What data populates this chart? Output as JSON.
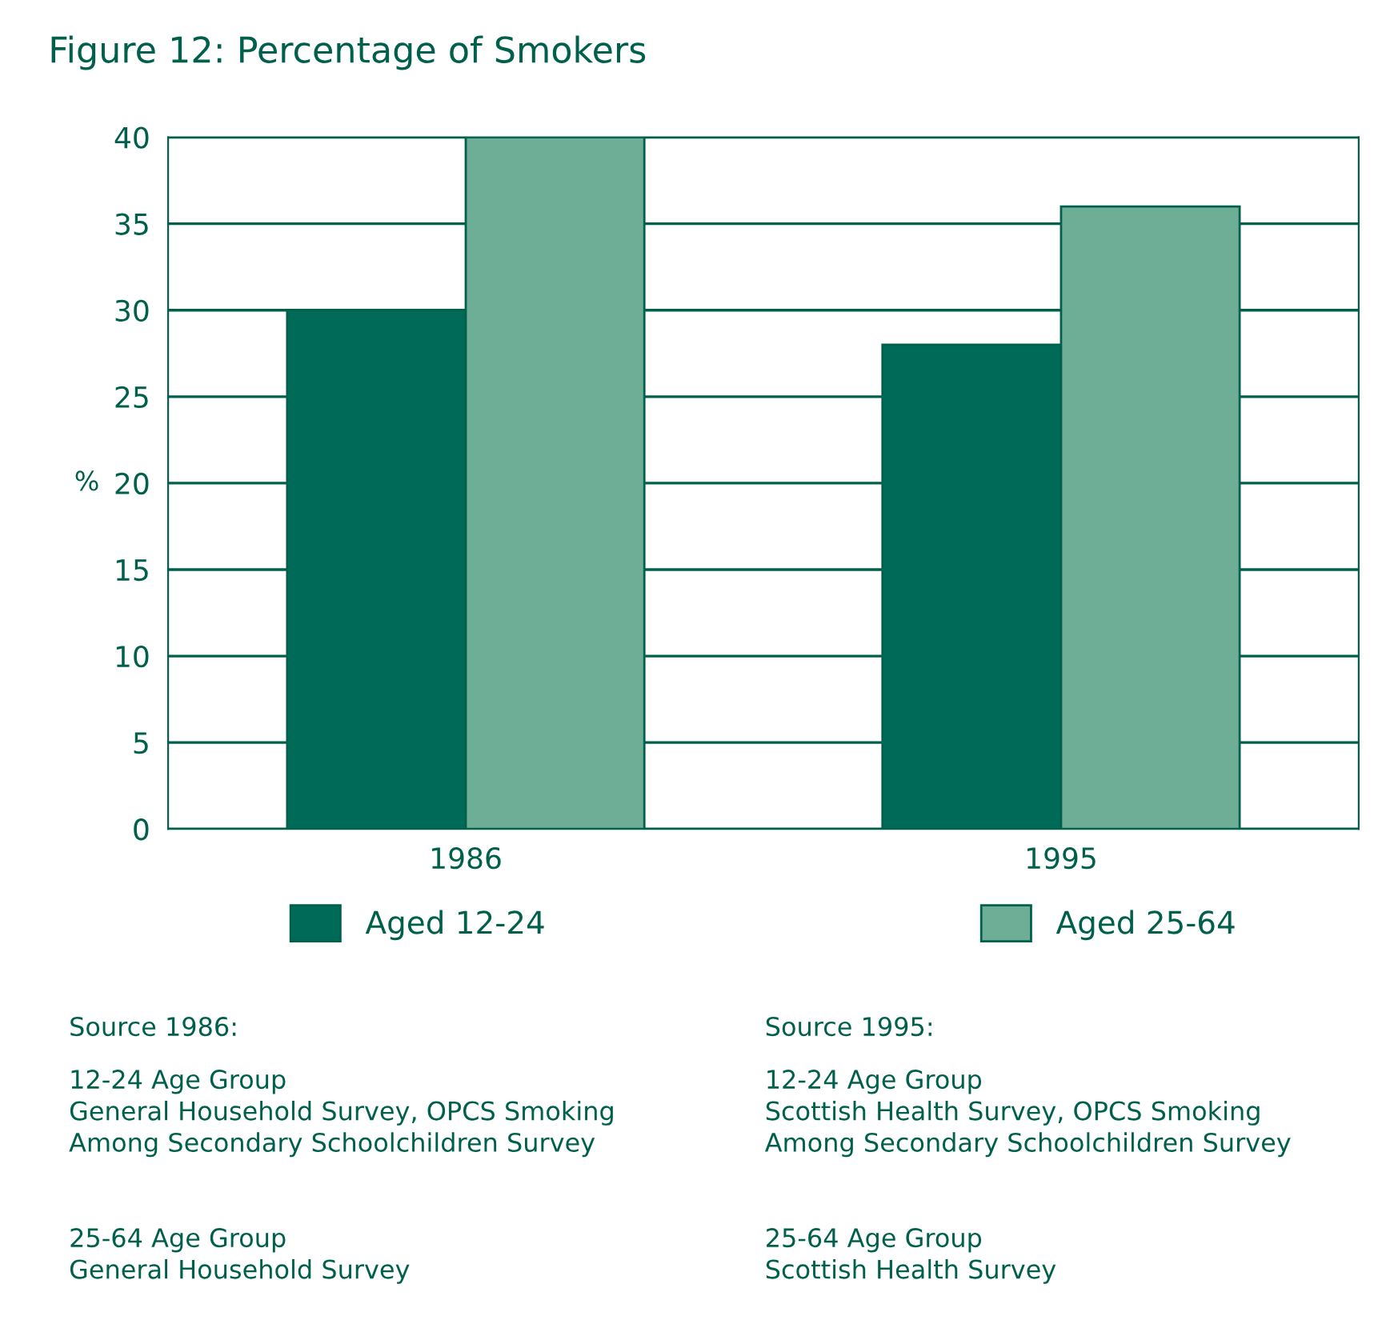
{
  "chart_data": {
    "type": "bar",
    "title": "Figure 12: Percentage of Smokers",
    "ylabel": "%",
    "categories": [
      "1986",
      "1995"
    ],
    "series": [
      {
        "name": "Aged 12-24",
        "color": "#006a58",
        "values": [
          30,
          28
        ]
      },
      {
        "name": "Aged 25-64",
        "color": "#6fae96",
        "values": [
          40,
          36
        ]
      }
    ],
    "ylim": [
      0,
      40
    ],
    "yticks": [
      0,
      5,
      10,
      15,
      20,
      25,
      30,
      35,
      40
    ],
    "grid": "y",
    "legend": "bottom",
    "annotations": [
      "Source 1986:",
      "12-24 Age Group\nGeneral Household Survey, OPCS Smoking\nAmong Secondary Schoolchildren Survey",
      "25-64 Age Group\nGeneral Household Survey",
      "Source 1995:",
      "12-24 Age Group\nScottish Health Survey, OPCS Smoking\nAmong Secondary Schoolchildren Survey",
      "25-64 Age Group\nScottish Health Survey"
    ]
  }
}
